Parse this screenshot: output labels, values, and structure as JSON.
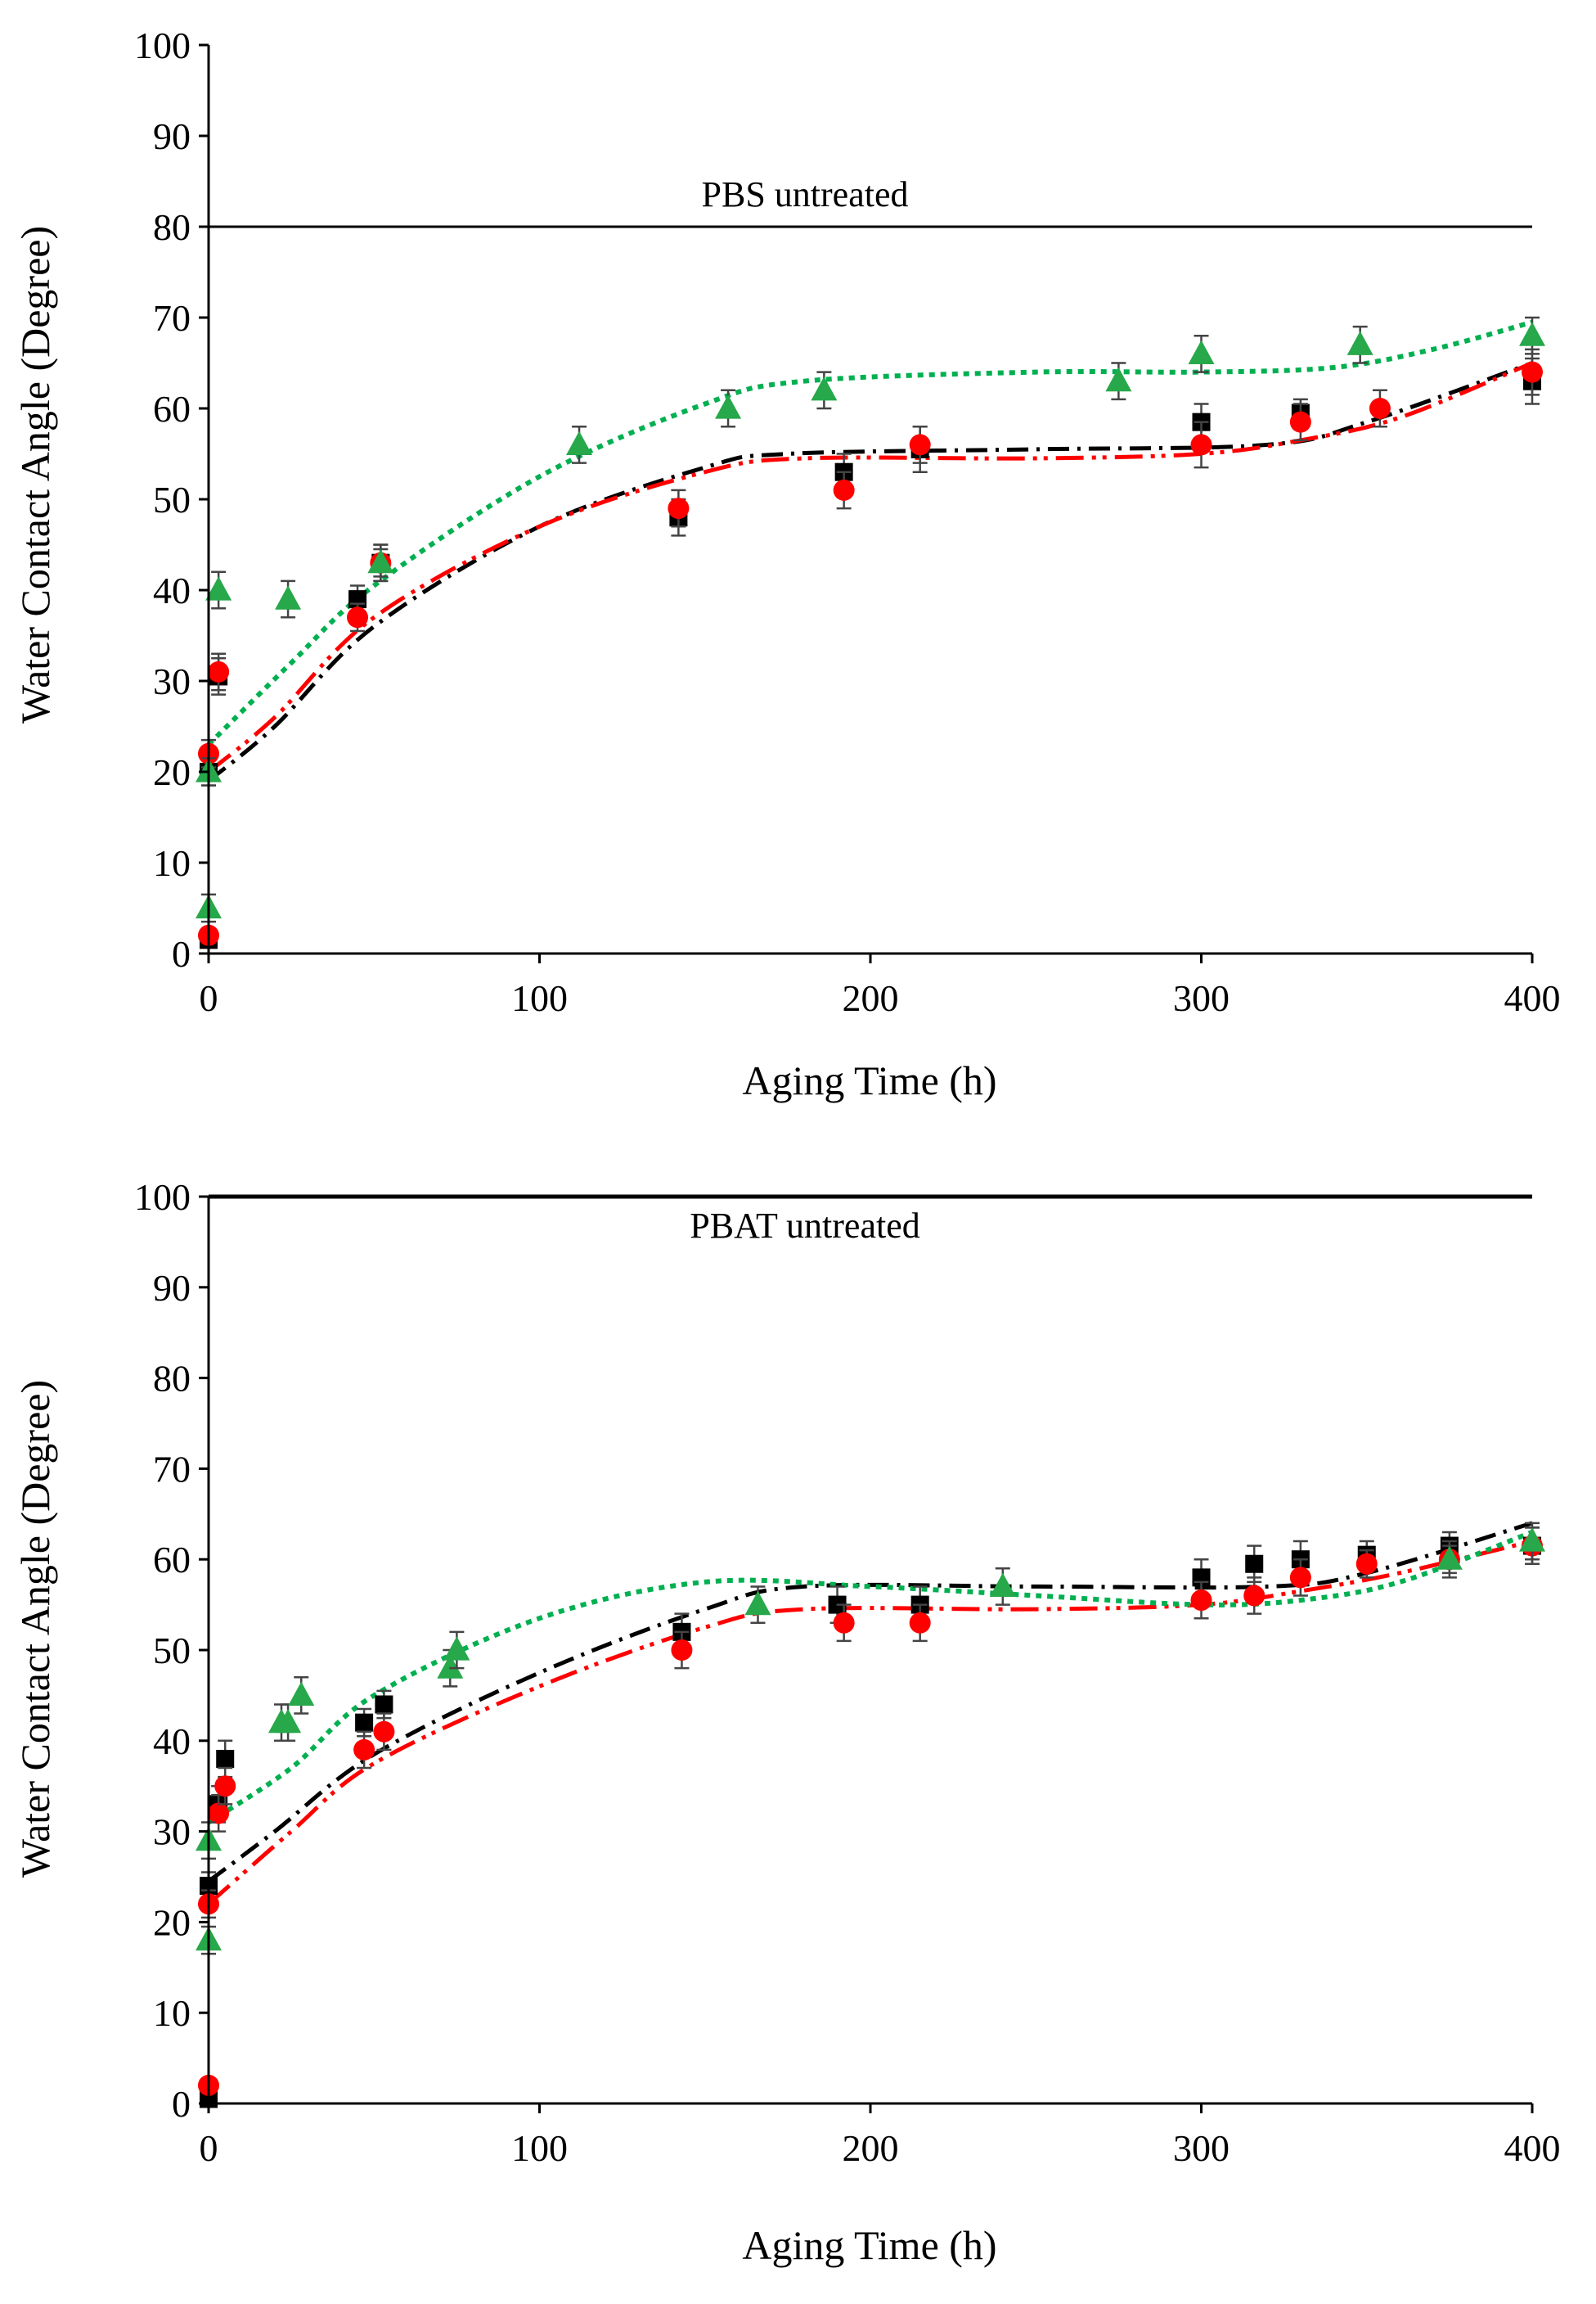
{
  "figure": {
    "description_panels": 2
  },
  "colors": {
    "black": "#000000",
    "red": "#ff0000",
    "green": "#00b050",
    "marker_green": "#27a84a"
  },
  "chart_data": [
    {
      "type": "scatter",
      "panel": "top",
      "annotation": "PBS untreated",
      "reference_line_y": 80,
      "xlabel": "Aging Time (h)",
      "ylabel": "Water Contact Angle (Degree)",
      "xlim": [
        0,
        400
      ],
      "ylim": [
        0,
        100
      ],
      "x_ticks": [
        0,
        100,
        200,
        300,
        400
      ],
      "x_tick_labels": [
        "0",
        "100",
        "200",
        "300",
        "400"
      ],
      "y_ticks": [
        0,
        10,
        20,
        30,
        40,
        50,
        60,
        70,
        80,
        90,
        100
      ],
      "y_tick_labels": [
        "0",
        "10",
        "20",
        "30",
        "40",
        "50",
        "60",
        "70",
        "80",
        "90",
        "100"
      ],
      "series": [
        {
          "name": "black squares",
          "marker": "square",
          "color": "#000000",
          "points": [
            [
              0,
              1.5,
              0.6
            ],
            [
              0,
              20,
              1.5
            ],
            [
              3,
              30.5,
              2
            ],
            [
              45,
              39,
              1.5
            ],
            [
              52,
              43,
              2
            ],
            [
              142,
              48,
              2
            ],
            [
              192,
              53,
              2
            ],
            [
              215,
              55.5,
              2.5
            ],
            [
              300,
              58.5,
              2
            ],
            [
              330,
              59.5,
              1.5
            ],
            [
              400,
              63,
              2.5
            ]
          ],
          "fit": [
            [
              0,
              19
            ],
            [
              20,
              25
            ],
            [
              50,
              36
            ],
            [
              100,
              47
            ],
            [
              150,
              53.5
            ],
            [
              175,
              55
            ],
            [
              250,
              55.5
            ],
            [
              320,
              56
            ],
            [
              350,
              58.5
            ],
            [
              400,
              65
            ]
          ],
          "fit_dash": "26 10 4 10"
        },
        {
          "name": "red circles",
          "marker": "circle",
          "color": "#ff0000",
          "points": [
            [
              0,
              2,
              0.6
            ],
            [
              0,
              22,
              1.5
            ],
            [
              3,
              31,
              2
            ],
            [
              45,
              37,
              1.5
            ],
            [
              52,
              43,
              1.5
            ],
            [
              142,
              49,
              2
            ],
            [
              192,
              51,
              2
            ],
            [
              215,
              56,
              2
            ],
            [
              300,
              56,
              2.5
            ],
            [
              330,
              58.5,
              2
            ],
            [
              354,
              60,
              2
            ],
            [
              400,
              64,
              2.5
            ]
          ],
          "fit": [
            [
              0,
              20
            ],
            [
              20,
              26
            ],
            [
              50,
              37
            ],
            [
              100,
              47
            ],
            [
              150,
              53
            ],
            [
              180,
              54.5
            ],
            [
              250,
              54.5
            ],
            [
              300,
              55
            ],
            [
              330,
              56.5
            ],
            [
              360,
              59
            ],
            [
              400,
              65
            ]
          ],
          "fit_dash": "34 10 5 8 5 10"
        },
        {
          "name": "green triangles",
          "marker": "triangle",
          "color": "#00b050",
          "points": [
            [
              0,
              5,
              1.5
            ],
            [
              0,
              20,
              1.5
            ],
            [
              3,
              40,
              2
            ],
            [
              24,
              39,
              2
            ],
            [
              52,
              43,
              2
            ],
            [
              112,
              56,
              2
            ],
            [
              157,
              60,
              2
            ],
            [
              186,
              62,
              2
            ],
            [
              275,
              63,
              2
            ],
            [
              300,
              66,
              2
            ],
            [
              348,
              67,
              2
            ],
            [
              400,
              68,
              2
            ]
          ],
          "fit": [
            [
              0,
              23
            ],
            [
              25,
              32
            ],
            [
              50,
              40.5
            ],
            [
              100,
              52.5
            ],
            [
              150,
              60.5
            ],
            [
              180,
              63
            ],
            [
              250,
              64
            ],
            [
              300,
              64
            ],
            [
              340,
              64.5
            ],
            [
              370,
              66.5
            ],
            [
              400,
              69.5
            ]
          ],
          "fit_dash": "7 7"
        }
      ]
    },
    {
      "type": "scatter",
      "panel": "bottom",
      "annotation": "PBAT untreated",
      "reference_line_y": 100,
      "xlabel": "Aging Time (h)",
      "ylabel": "Water Contact Angle (Degree)",
      "xlim": [
        0,
        400
      ],
      "ylim": [
        0,
        100
      ],
      "x_ticks": [
        0,
        100,
        200,
        300,
        400
      ],
      "x_tick_labels": [
        "0",
        "100",
        "200",
        "300",
        "400"
      ],
      "y_ticks": [
        0,
        10,
        20,
        30,
        40,
        50,
        60,
        70,
        80,
        90,
        100
      ],
      "y_tick_labels": [
        "0",
        "10",
        "20",
        "30",
        "40",
        "50",
        "60",
        "70",
        "80",
        "90",
        "100"
      ],
      "series": [
        {
          "name": "black squares",
          "marker": "square",
          "color": "#000000",
          "points": [
            [
              0,
              0.5,
              0.5
            ],
            [
              0,
              24,
              1.5
            ],
            [
              3,
              33,
              2
            ],
            [
              5,
              38,
              2
            ],
            [
              47,
              42,
              1.5
            ],
            [
              53,
              44,
              1.5
            ],
            [
              143,
              52,
              2
            ],
            [
              190,
              55,
              2
            ],
            [
              215,
              55,
              2
            ],
            [
              300,
              58,
              2
            ],
            [
              316,
              59.5,
              2
            ],
            [
              330,
              60,
              2
            ],
            [
              350,
              60.5,
              1.5
            ],
            [
              375,
              61.5,
              1.5
            ],
            [
              400,
              61.5,
              2
            ]
          ],
          "fit": [
            [
              0,
              24.5
            ],
            [
              20,
              30
            ],
            [
              50,
              38.5
            ],
            [
              100,
              47.5
            ],
            [
              150,
              54.5
            ],
            [
              180,
              57
            ],
            [
              250,
              57
            ],
            [
              320,
              57
            ],
            [
              350,
              58.5
            ],
            [
              400,
              64
            ]
          ],
          "fit_dash": "26 10 4 10"
        },
        {
          "name": "red circles",
          "marker": "circle",
          "color": "#ff0000",
          "points": [
            [
              0,
              2,
              0.6
            ],
            [
              0,
              22,
              1.5
            ],
            [
              3,
              32,
              2
            ],
            [
              5,
              35,
              2
            ],
            [
              47,
              39,
              2
            ],
            [
              53,
              41,
              2
            ],
            [
              143,
              50,
              2
            ],
            [
              192,
              53,
              2
            ],
            [
              215,
              53,
              2
            ],
            [
              300,
              55.5,
              2
            ],
            [
              316,
              56,
              2
            ],
            [
              330,
              58,
              2
            ],
            [
              350,
              59.5,
              1.5
            ],
            [
              375,
              60,
              2
            ],
            [
              400,
              61.5,
              2
            ]
          ],
          "fit": [
            [
              0,
              22
            ],
            [
              25,
              30
            ],
            [
              50,
              37.5
            ],
            [
              100,
              46
            ],
            [
              150,
              52.5
            ],
            [
              180,
              54.5
            ],
            [
              250,
              54.5
            ],
            [
              300,
              55
            ],
            [
              330,
              56.5
            ],
            [
              360,
              58.5
            ],
            [
              400,
              62
            ]
          ],
          "fit_dash": "34 10 5 8 5 10"
        },
        {
          "name": "green triangles",
          "marker": "triangle",
          "color": "#00b050",
          "points": [
            [
              0,
              18,
              1.5
            ],
            [
              0,
              29,
              2
            ],
            [
              22,
              42,
              2
            ],
            [
              24,
              42,
              2
            ],
            [
              28,
              45,
              2
            ],
            [
              73,
              48,
              2
            ],
            [
              75,
              50,
              2
            ],
            [
              166,
              55,
              2
            ],
            [
              240,
              57,
              2
            ],
            [
              375,
              60,
              1.5
            ],
            [
              400,
              62,
              2
            ]
          ],
          "fit": [
            [
              0,
              31
            ],
            [
              25,
              37
            ],
            [
              50,
              45
            ],
            [
              100,
              53.5
            ],
            [
              150,
              57.5
            ],
            [
              200,
              57
            ],
            [
              250,
              56
            ],
            [
              300,
              55
            ],
            [
              330,
              55.5
            ],
            [
              360,
              57.5
            ],
            [
              400,
              63
            ]
          ],
          "fit_dash": "7 7"
        }
      ]
    }
  ]
}
